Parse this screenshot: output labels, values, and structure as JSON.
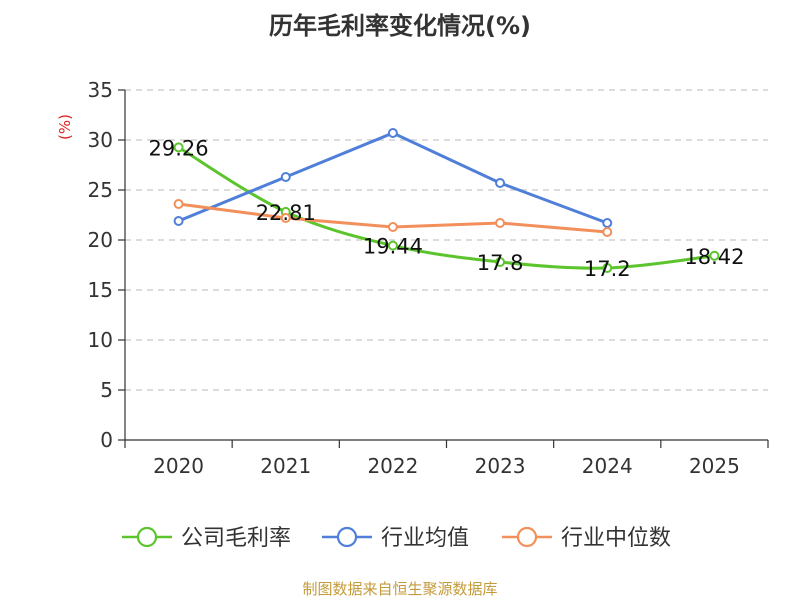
{
  "chart_data": {
    "type": "line",
    "title": "历年毛利率变化情况(%)",
    "ylabel": "(%)",
    "xlabel": "",
    "categories": [
      "2020",
      "2021",
      "2022",
      "2023",
      "2024",
      "2025"
    ],
    "ylim": [
      0,
      35
    ],
    "yticks": [
      0,
      5,
      10,
      15,
      20,
      25,
      30,
      35
    ],
    "grid": true,
    "legend_position": "bottom",
    "series": [
      {
        "name": "公司毛利率",
        "color": "#5cc52e",
        "values": [
          29.26,
          22.81,
          19.44,
          17.8,
          17.2,
          18.42
        ],
        "labels": [
          "29.26",
          "22.81",
          "19.44",
          "17.8",
          "17.2",
          "18.42"
        ],
        "show_labels": true
      },
      {
        "name": "行业均值",
        "color": "#4f7fd8",
        "values": [
          21.9,
          26.3,
          30.7,
          25.7,
          21.7,
          null
        ],
        "show_labels": false
      },
      {
        "name": "行业中位数",
        "color": "#f28f5a",
        "values": [
          23.6,
          22.2,
          21.3,
          21.7,
          20.8,
          null
        ],
        "show_labels": false
      }
    ]
  },
  "footer": {
    "source": "制图数据来自恒生聚源数据库"
  }
}
